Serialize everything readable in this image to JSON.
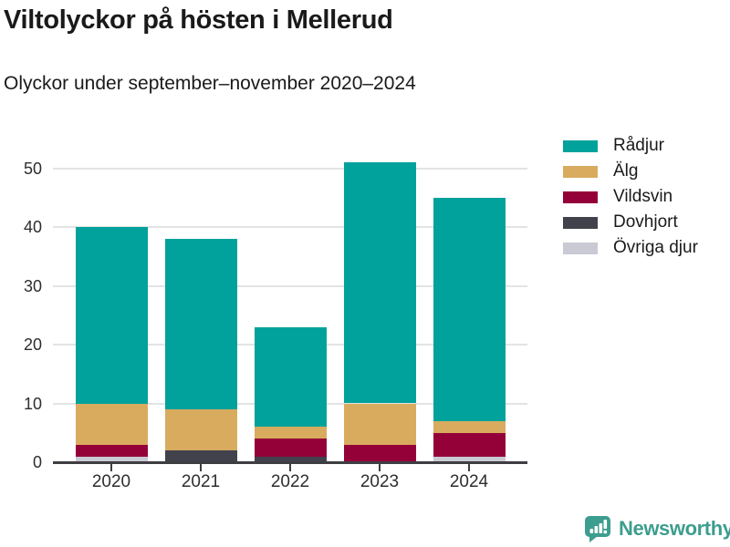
{
  "header": {
    "title": "Viltolyckor på hösten i Mellerud",
    "subtitle": "Olyckor under september–november 2020–2024"
  },
  "chart_data": {
    "type": "bar",
    "stacked": true,
    "title": "Viltolyckor på hösten i Mellerud",
    "subtitle": "Olyckor under september–november 2020–2024",
    "categories": [
      "2020",
      "2021",
      "2022",
      "2023",
      "2024"
    ],
    "series": [
      {
        "name": "Rådjur",
        "color": "#00a29b",
        "values": [
          30,
          29,
          17,
          41,
          38
        ]
      },
      {
        "name": "Älg",
        "color": "#d9ab5f",
        "values": [
          7,
          7,
          2,
          7,
          2
        ]
      },
      {
        "name": "Vildsvin",
        "color": "#940139",
        "values": [
          2,
          0,
          3,
          3,
          4
        ]
      },
      {
        "name": "Dovhjort",
        "color": "#42424d",
        "values": [
          0,
          2,
          1,
          0,
          0
        ]
      },
      {
        "name": "Övriga djur",
        "color": "#c9cad4",
        "values": [
          1,
          0,
          0,
          0,
          1
        ]
      }
    ],
    "totals": [
      40,
      38,
      23,
      51,
      45
    ],
    "stack_order_bottom_to_top": [
      "Övriga djur",
      "Dovhjort",
      "Vildsvin",
      "Älg",
      "Rådjur"
    ],
    "yticks": [
      0,
      10,
      20,
      30,
      40,
      50
    ],
    "ylim": [
      0,
      55.5
    ],
    "xlabel": "",
    "ylabel": "",
    "grid": true,
    "legend_position": "right",
    "grid_color": "#e3e3e3",
    "axis_color": "#3e3e42",
    "tick_label_color": "#2e2e2e"
  },
  "footer": {
    "brand": "Newsworthy",
    "brand_color": "#3d9d8e",
    "logo_icon": "bar-chart-speech-bubble-icon"
  }
}
